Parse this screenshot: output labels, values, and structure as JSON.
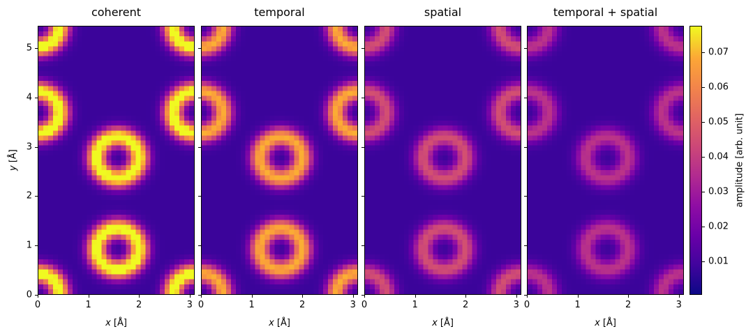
{
  "chart_data": {
    "type": "heatmap",
    "colormap": "plasma",
    "xlabel_prefix": "x",
    "ylabel_prefix": "y",
    "axis_unit": "[Å]",
    "xlim": [
      0,
      3.1
    ],
    "ylim": [
      0,
      5.45
    ],
    "x_ticks": [
      "0",
      "1",
      "2",
      "3"
    ],
    "y_ticks": [
      "0",
      "1",
      "2",
      "3",
      "4",
      "5"
    ],
    "atom_sites_xy": [
      [
        1.58,
        2.78
      ],
      [
        1.58,
        0.92
      ],
      [
        0.0,
        3.7
      ],
      [
        3.1,
        3.7
      ],
      [
        0.0,
        0.0
      ],
      [
        3.1,
        0.0
      ],
      [
        0.0,
        5.45
      ],
      [
        3.1,
        5.45
      ]
    ],
    "panels": [
      {
        "title": "coherent",
        "ring_peak": 0.077
      },
      {
        "title": "temporal",
        "ring_peak": 0.062
      },
      {
        "title": "spatial",
        "ring_peak": 0.038
      },
      {
        "title": "temporal + spatial",
        "ring_peak": 0.03
      }
    ],
    "colorbar": {
      "label": "amplitude [arb. unit]",
      "range": [
        0.0005,
        0.0775
      ],
      "ticks": [
        "0.01",
        "0.02",
        "0.03",
        "0.04",
        "0.05",
        "0.06",
        "0.07"
      ]
    }
  }
}
